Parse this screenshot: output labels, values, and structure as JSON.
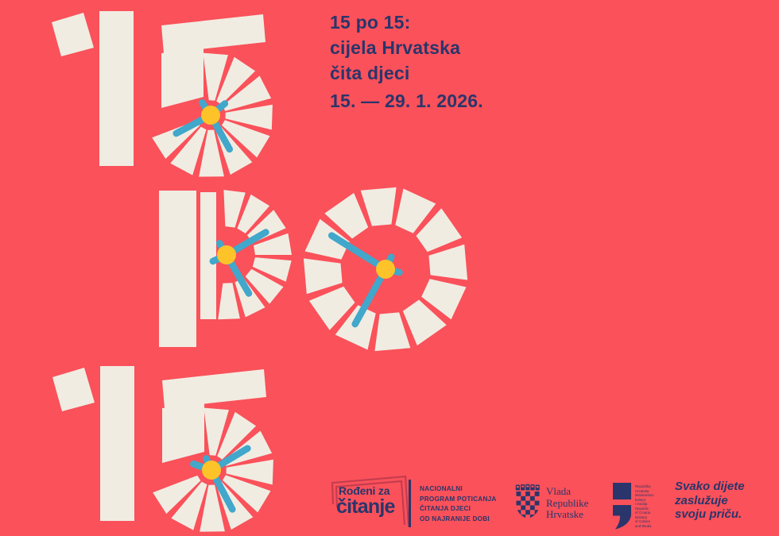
{
  "artwork": {
    "label": "15 po 15",
    "words": [
      "15",
      "po",
      "15"
    ]
  },
  "header": {
    "line1": "15 po 15:",
    "line2": "cijela Hrvatska",
    "line3": "čita djeci",
    "date": "15. — 29. 1. 2026."
  },
  "footer": {
    "rodjeni_line1": "Rođeni za",
    "rodjeni_line2": "čitanje",
    "program_lines": [
      "NACIONALNI",
      "PROGRAM POTICANJA",
      "ČITANJA DJECI",
      "OD NAJRANIJE DOBI"
    ],
    "government_lines": [
      "Vlada",
      "Republike",
      "Hrvatske"
    ],
    "ministry_lines": [
      "Republika",
      "Hrvatska",
      "Ministarstvo",
      "kulture",
      "i medija",
      "Republic",
      "of Croatia",
      "Ministry",
      "of Culture",
      "and Media"
    ],
    "slogan_lines": [
      "Svako dijete",
      "zaslužuje",
      "svoju priču."
    ]
  },
  "colors": {
    "background": "#FA515A",
    "cream": "#F1ECE2",
    "navy": "#2A356B",
    "blue": "#41A7CB",
    "yellow": "#FFC32A",
    "frame_red": "#C23B4E"
  }
}
